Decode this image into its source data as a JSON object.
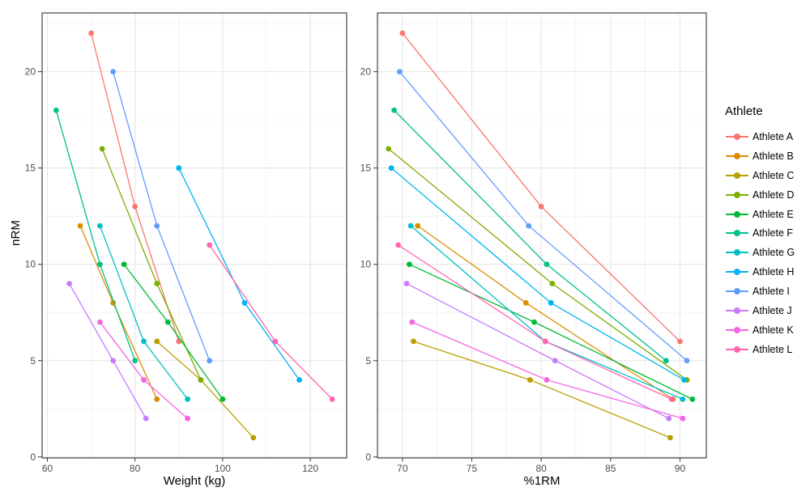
{
  "figure": {
    "background": "#FFFFFF",
    "panel_border_color": "#333333",
    "grid_major_color": "#E5E5E5",
    "grid_minor_color": "#F1F1F1",
    "tick_mark_color": "#333333",
    "tick_label_color": "#4D4D4D",
    "axis_title_color": "#000000"
  },
  "chart_data": {
    "type": "line",
    "title": "",
    "ylabel": "nRM",
    "y_ticks": [
      0,
      5,
      10,
      15,
      20
    ],
    "y_minor": [
      2.5,
      7.5,
      12.5,
      17.5,
      22.5
    ],
    "ylim": [
      -0.05,
      23.05
    ],
    "grid": true,
    "legend_title": "Athlete",
    "legend_position": "right",
    "panels": [
      {
        "id": "weight",
        "xlabel": "Weight (kg)",
        "x_key": "weights",
        "x_ticks": [
          60,
          80,
          100,
          120
        ],
        "x_minor": [
          70,
          90,
          110
        ],
        "xlim": [
          58.8,
          128.3
        ]
      },
      {
        "id": "pct1rm",
        "xlabel": "%1RM",
        "x_key": "pcts",
        "x_ticks": [
          70,
          75,
          80,
          85,
          90
        ],
        "x_minor": [
          72.5,
          77.5,
          82.5,
          87.5
        ],
        "xlim": [
          68.2,
          91.9
        ]
      }
    ],
    "series": [
      {
        "name": "Athlete A",
        "color": "#F8766D",
        "weights": [
          70,
          80,
          90
        ],
        "pcts": [
          70.0,
          80.0,
          90.0
        ],
        "nrm": [
          22,
          13,
          6
        ]
      },
      {
        "name": "Athlete B",
        "color": "#DE8C00",
        "weights": [
          67.5,
          75,
          85
        ],
        "pcts": [
          71.1,
          78.9,
          89.5
        ],
        "nrm": [
          12,
          8,
          3
        ]
      },
      {
        "name": "Athlete C",
        "color": "#B79F00",
        "weights": [
          85,
          95,
          107
        ],
        "pcts": [
          70.8,
          79.2,
          89.3
        ],
        "nrm": [
          6,
          4,
          1
        ]
      },
      {
        "name": "Athlete D",
        "color": "#7CAE00",
        "weights": [
          72.5,
          85,
          95
        ],
        "pcts": [
          69.0,
          80.8,
          90.5
        ],
        "nrm": [
          16,
          9,
          4
        ]
      },
      {
        "name": "Athlete E",
        "color": "#00BA38",
        "weights": [
          77.5,
          87.5,
          100
        ],
        "pcts": [
          70.5,
          79.5,
          90.9
        ],
        "nrm": [
          10,
          7,
          3
        ]
      },
      {
        "name": "Athlete F",
        "color": "#00C08B",
        "weights": [
          62,
          72,
          80
        ],
        "pcts": [
          69.4,
          80.4,
          89.0
        ],
        "nrm": [
          18,
          10,
          5
        ]
      },
      {
        "name": "Athlete G",
        "color": "#00BFC4",
        "weights": [
          72,
          82,
          92
        ],
        "pcts": [
          70.6,
          80.3,
          90.2
        ],
        "nrm": [
          12,
          6,
          3
        ]
      },
      {
        "name": "Athlete H",
        "color": "#00B4F0",
        "weights": [
          90,
          105,
          117.5
        ],
        "pcts": [
          69.2,
          80.7,
          90.3
        ],
        "nrm": [
          15,
          8,
          4
        ]
      },
      {
        "name": "Athlete I",
        "color": "#619CFF",
        "weights": [
          75,
          85,
          97
        ],
        "pcts": [
          69.8,
          79.1,
          90.5
        ],
        "nrm": [
          20,
          12,
          5
        ]
      },
      {
        "name": "Athlete J",
        "color": "#C77CFF",
        "weights": [
          65,
          75,
          82.5
        ],
        "pcts": [
          70.3,
          81.0,
          89.2
        ],
        "nrm": [
          9,
          5,
          2
        ]
      },
      {
        "name": "Athlete K",
        "color": "#F564E3",
        "weights": [
          72,
          82,
          92
        ],
        "pcts": [
          70.7,
          80.4,
          90.2
        ],
        "nrm": [
          7,
          4,
          2
        ]
      },
      {
        "name": "Athlete L",
        "color": "#FF64B0",
        "weights": [
          97,
          112,
          125
        ],
        "pcts": [
          69.7,
          80.3,
          89.4
        ],
        "nrm": [
          11,
          6,
          3
        ]
      }
    ]
  }
}
